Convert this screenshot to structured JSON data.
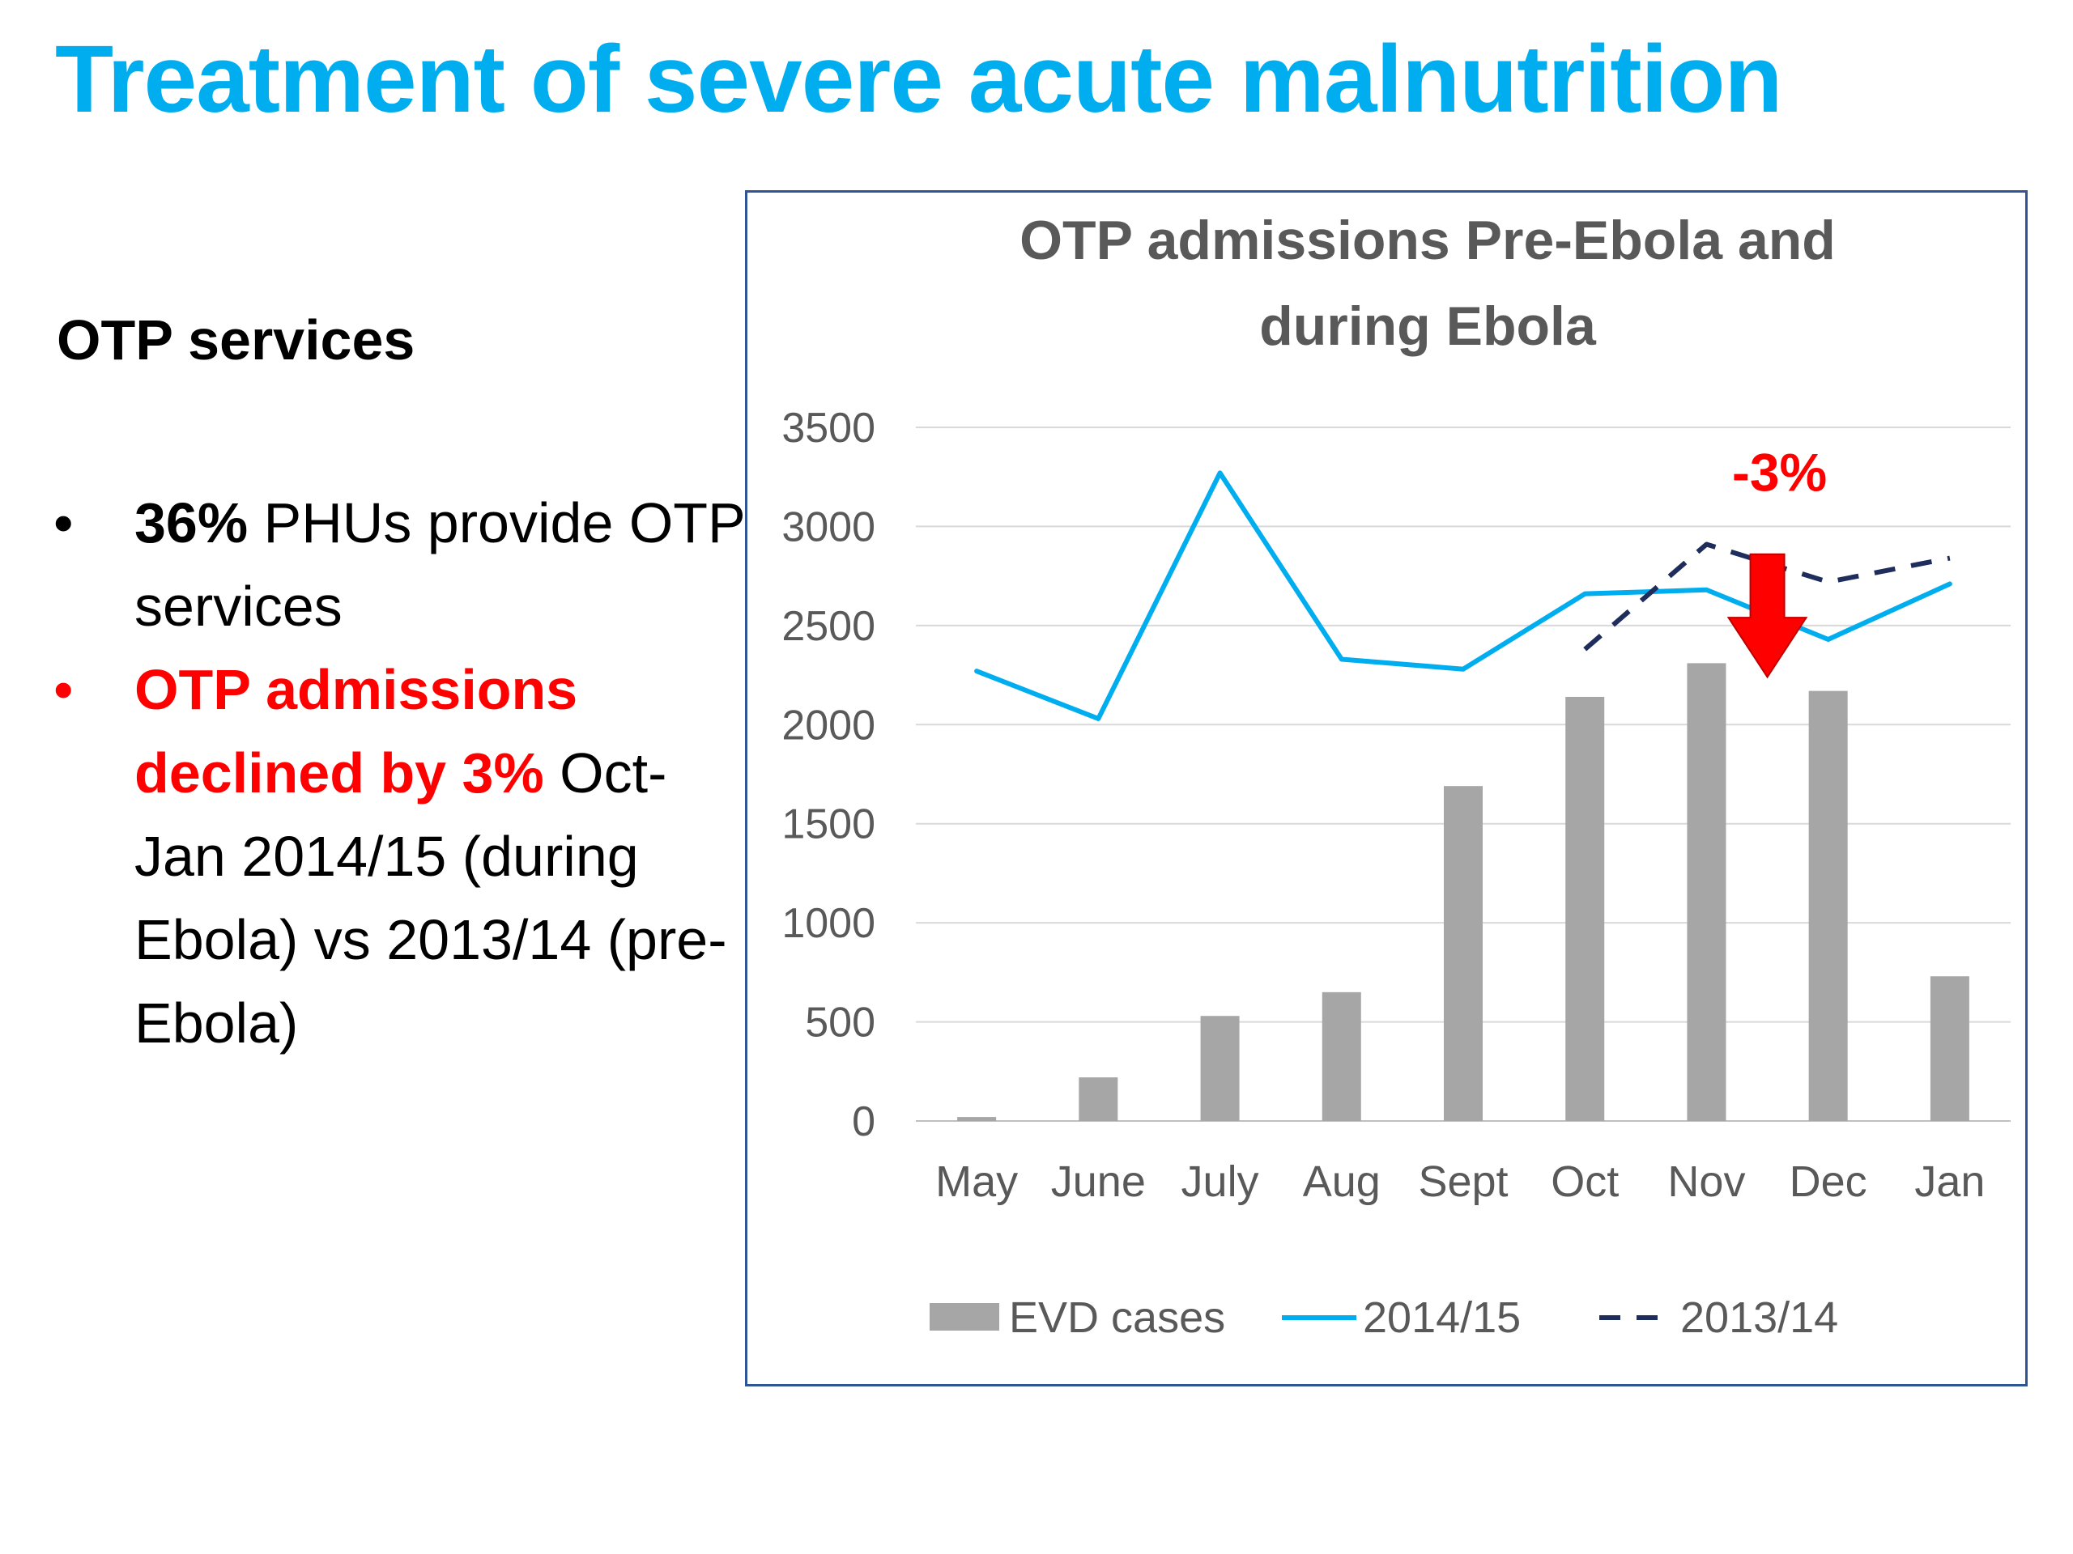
{
  "slide": {
    "title": "Treatment of severe acute malnutrition",
    "subheading": "OTP services",
    "bullets": [
      {
        "bold": "36%",
        "text": " PHUs provide OTP services"
      },
      {
        "bold": "OTP admissions declined by 3%",
        "text": " Oct- Jan 2014/15 (during Ebola) vs 2013/14 (pre-Ebola)"
      }
    ]
  },
  "chart_data": {
    "type": "bar",
    "title": "OTP admissions Pre-Ebola and during Ebola",
    "title_lines": [
      "OTP admissions Pre-Ebola and",
      "during Ebola"
    ],
    "categories": [
      "May",
      "June",
      "July",
      "Aug",
      "Sept",
      "Oct",
      "Nov",
      "Dec",
      "Jan"
    ],
    "ylim": [
      0,
      3500
    ],
    "yticks": [
      0,
      500,
      1000,
      1500,
      2000,
      2500,
      3000,
      3500
    ],
    "grid": true,
    "legend_position": "bottom",
    "series": [
      {
        "name": "EVD cases",
        "kind": "bar",
        "color": "#a6a6a6",
        "values": [
          20,
          220,
          530,
          650,
          1690,
          2140,
          2310,
          2170,
          730
        ]
      },
      {
        "name": "2014/15",
        "kind": "line",
        "color": "#00aeef",
        "dash": "solid",
        "values": [
          2270,
          2030,
          3270,
          2330,
          2280,
          2660,
          2680,
          2430,
          2710
        ]
      },
      {
        "name": "2013/14",
        "kind": "line",
        "color": "#1f2d5c",
        "dash": "dashed",
        "values": [
          null,
          null,
          null,
          null,
          null,
          2380,
          2910,
          2720,
          2840
        ]
      }
    ],
    "annotations": [
      {
        "text": "-3%",
        "color": "#ff0000",
        "category": "Nov"
      }
    ]
  }
}
